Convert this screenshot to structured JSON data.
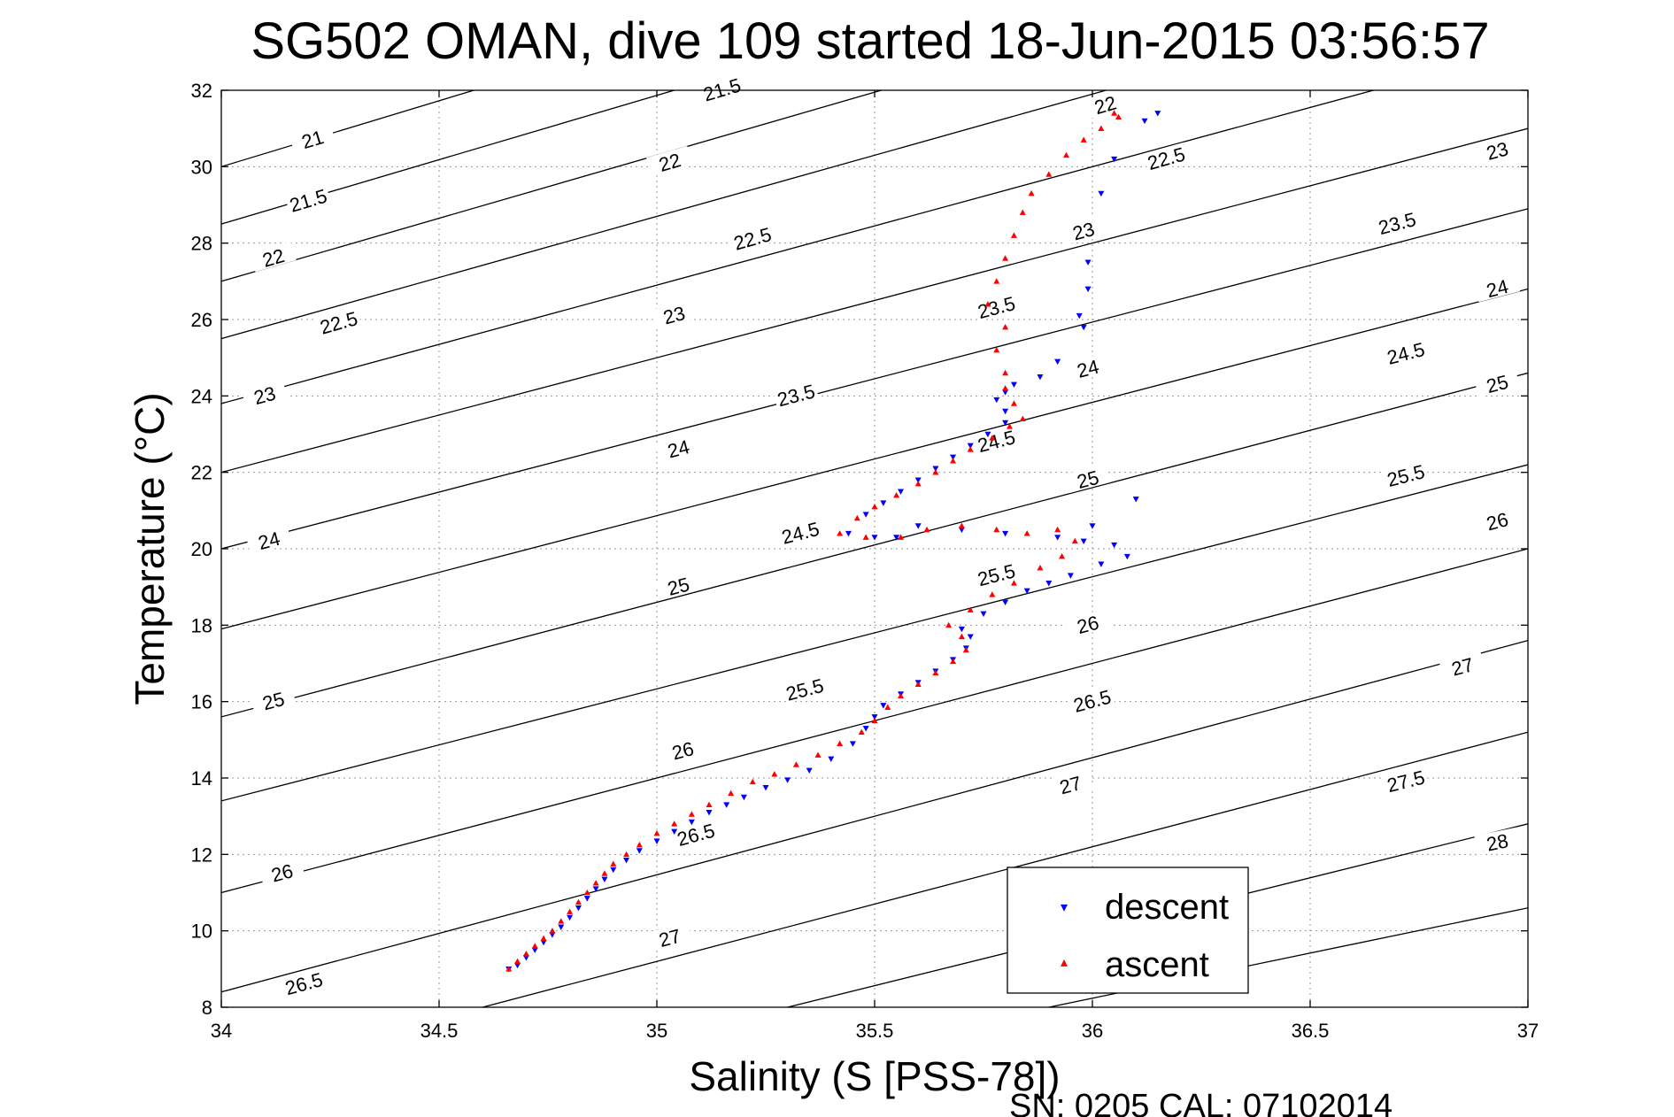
{
  "chart_data": {
    "type": "scatter",
    "title": "SG502 OMAN, dive 109 started 18-Jun-2015 03:56:57",
    "xlabel": "Salinity (S [PSS-78])",
    "ylabel": "Temperature (°C)",
    "xlim": [
      34,
      37
    ],
    "ylim": [
      8,
      32
    ],
    "x_ticks": [
      34,
      34.5,
      35,
      35.5,
      36,
      36.5,
      37
    ],
    "x_tick_labels": [
      "34",
      "34.5",
      "35",
      "35.5",
      "36",
      "36.5",
      "37"
    ],
    "y_ticks": [
      8,
      10,
      12,
      14,
      16,
      18,
      20,
      22,
      24,
      26,
      28,
      30,
      32
    ],
    "y_tick_labels": [
      "8",
      "10",
      "12",
      "14",
      "16",
      "18",
      "20",
      "22",
      "24",
      "26",
      "28",
      "30",
      "32"
    ],
    "grid": true,
    "legend_position": "bottom-right",
    "footer": "SN: 0205  CAL: 07102014",
    "density_contours": [
      {
        "sigma": 21,
        "label": "21",
        "points": [
          [
            34.0,
            30.0
          ],
          [
            36.0,
            36.9
          ]
        ],
        "labels_at": [
          [
            34.21,
            30.7
          ]
        ]
      },
      {
        "sigma": 21.5,
        "label": "21.5",
        "points": [
          [
            34.0,
            28.5
          ],
          [
            37.0,
            38.6
          ]
        ],
        "labels_at": [
          [
            34.2,
            29.1
          ],
          [
            35.15,
            32.0
          ]
        ]
      },
      {
        "sigma": 22,
        "label": "22",
        "points": [
          [
            34.0,
            27.0
          ],
          [
            37.0,
            36.9
          ]
        ],
        "labels_at": [
          [
            34.12,
            27.6
          ],
          [
            35.03,
            30.1
          ],
          [
            36.03,
            31.6
          ]
        ]
      },
      {
        "sigma": 22.5,
        "label": "22.5",
        "points": [
          [
            34.0,
            25.5
          ],
          [
            37.0,
            35.1
          ]
        ],
        "labels_at": [
          [
            34.27,
            25.9
          ],
          [
            35.22,
            28.1
          ],
          [
            36.17,
            30.2
          ]
        ]
      },
      {
        "sigma": 23,
        "label": "23",
        "points": [
          [
            34.0,
            23.8
          ],
          [
            37.0,
            33.1
          ]
        ],
        "labels_at": [
          [
            34.1,
            24.0
          ],
          [
            35.04,
            26.1
          ],
          [
            35.98,
            28.3
          ],
          [
            36.93,
            30.4
          ]
        ]
      },
      {
        "sigma": 23.5,
        "label": "23.5",
        "points": [
          [
            34.0,
            22.0
          ],
          [
            37.0,
            31.0
          ]
        ],
        "labels_at": [
          [
            35.32,
            24.0
          ],
          [
            35.78,
            26.3
          ],
          [
            36.7,
            28.5
          ]
        ]
      },
      {
        "sigma": 24,
        "label": "24",
        "points": [
          [
            34.0,
            20.0
          ],
          [
            37.0,
            28.9
          ]
        ],
        "labels_at": [
          [
            34.11,
            20.2
          ],
          [
            35.05,
            22.6
          ],
          [
            35.99,
            24.7
          ],
          [
            36.93,
            26.8
          ]
        ]
      },
      {
        "sigma": 24.5,
        "label": "24.5",
        "points": [
          [
            34.0,
            17.9
          ],
          [
            37.0,
            26.8
          ]
        ],
        "labels_at": [
          [
            35.33,
            20.4
          ],
          [
            35.78,
            22.8
          ],
          [
            36.72,
            25.1
          ]
        ]
      },
      {
        "sigma": 25,
        "label": "25",
        "points": [
          [
            34.0,
            15.6
          ],
          [
            37.0,
            24.6
          ]
        ],
        "labels_at": [
          [
            34.12,
            16.0
          ],
          [
            35.05,
            19.0
          ],
          [
            35.99,
            21.8
          ],
          [
            36.93,
            24.3
          ]
        ]
      },
      {
        "sigma": 25.5,
        "label": "25.5",
        "points": [
          [
            34.0,
            13.4
          ],
          [
            37.0,
            22.2
          ]
        ],
        "labels_at": [
          [
            35.34,
            16.3
          ],
          [
            35.78,
            19.3
          ],
          [
            36.72,
            21.9
          ]
        ]
      },
      {
        "sigma": 26,
        "label": "26",
        "points": [
          [
            34.0,
            11.0
          ],
          [
            37.0,
            20.0
          ]
        ],
        "labels_at": [
          [
            34.14,
            11.5
          ],
          [
            35.06,
            14.7
          ],
          [
            35.99,
            18.0
          ],
          [
            36.93,
            20.7
          ]
        ]
      },
      {
        "sigma": 26.5,
        "label": "26.5",
        "points": [
          [
            34.0,
            8.4
          ],
          [
            37.0,
            17.6
          ]
        ],
        "labels_at": [
          [
            34.19,
            8.6
          ],
          [
            35.09,
            12.5
          ],
          [
            36.0,
            16.0
          ]
        ]
      },
      {
        "sigma": 27,
        "label": "27",
        "points": [
          [
            34.6,
            8.0
          ],
          [
            37.0,
            15.2
          ]
        ],
        "labels_at": [
          [
            35.03,
            9.8
          ],
          [
            35.95,
            13.8
          ],
          [
            36.85,
            16.9
          ]
        ]
      },
      {
        "sigma": 27.5,
        "label": "27.5",
        "points": [
          [
            35.3,
            8.0
          ],
          [
            37.0,
            12.8
          ]
        ],
        "labels_at": [
          [
            36.72,
            13.9
          ]
        ]
      },
      {
        "sigma": 28,
        "label": "28",
        "points": [
          [
            35.9,
            8.0
          ],
          [
            37.0,
            10.6
          ]
        ],
        "labels_at": [
          [
            36.93,
            12.3
          ]
        ]
      }
    ],
    "series": [
      {
        "name": "descent",
        "color": "#0000ff",
        "marker": "triangle-down",
        "points": [
          [
            34.66,
            9.0
          ],
          [
            34.68,
            9.1
          ],
          [
            34.7,
            9.3
          ],
          [
            34.72,
            9.5
          ],
          [
            34.74,
            9.7
          ],
          [
            34.76,
            9.9
          ],
          [
            34.78,
            10.1
          ],
          [
            34.8,
            10.35
          ],
          [
            34.82,
            10.6
          ],
          [
            34.84,
            10.85
          ],
          [
            34.86,
            11.1
          ],
          [
            34.88,
            11.35
          ],
          [
            34.9,
            11.6
          ],
          [
            34.93,
            11.85
          ],
          [
            34.96,
            12.1
          ],
          [
            35.0,
            12.35
          ],
          [
            35.04,
            12.6
          ],
          [
            35.08,
            12.85
          ],
          [
            35.12,
            13.1
          ],
          [
            35.16,
            13.3
          ],
          [
            35.2,
            13.5
          ],
          [
            35.25,
            13.75
          ],
          [
            35.3,
            13.95
          ],
          [
            35.35,
            14.2
          ],
          [
            35.4,
            14.5
          ],
          [
            35.45,
            14.9
          ],
          [
            35.48,
            15.3
          ],
          [
            35.5,
            15.6
          ],
          [
            35.52,
            15.9
          ],
          [
            35.56,
            16.2
          ],
          [
            35.6,
            16.5
          ],
          [
            35.64,
            16.8
          ],
          [
            35.68,
            17.1
          ],
          [
            35.71,
            17.4
          ],
          [
            35.72,
            17.7
          ],
          [
            35.7,
            17.9
          ],
          [
            35.75,
            18.3
          ],
          [
            35.8,
            18.6
          ],
          [
            35.85,
            18.9
          ],
          [
            35.9,
            19.1
          ],
          [
            35.95,
            19.3
          ],
          [
            36.02,
            19.6
          ],
          [
            36.08,
            19.8
          ],
          [
            36.05,
            20.1
          ],
          [
            35.98,
            20.2
          ],
          [
            36.0,
            20.6
          ],
          [
            36.1,
            21.3
          ],
          [
            35.92,
            20.3
          ],
          [
            35.8,
            20.4
          ],
          [
            35.7,
            20.5
          ],
          [
            35.6,
            20.6
          ],
          [
            35.55,
            20.3
          ],
          [
            35.5,
            20.3
          ],
          [
            35.44,
            20.4
          ],
          [
            35.48,
            20.9
          ],
          [
            35.52,
            21.2
          ],
          [
            35.56,
            21.5
          ],
          [
            35.6,
            21.8
          ],
          [
            35.64,
            22.1
          ],
          [
            35.68,
            22.4
          ],
          [
            35.72,
            22.7
          ],
          [
            35.76,
            23.0
          ],
          [
            35.8,
            23.3
          ],
          [
            35.8,
            23.6
          ],
          [
            35.78,
            23.9
          ],
          [
            35.8,
            24.1
          ],
          [
            35.82,
            24.3
          ],
          [
            35.88,
            24.5
          ],
          [
            35.92,
            24.9
          ],
          [
            35.98,
            25.8
          ],
          [
            35.97,
            26.1
          ],
          [
            35.99,
            26.8
          ],
          [
            35.99,
            27.5
          ],
          [
            36.02,
            29.3
          ],
          [
            36.05,
            30.2
          ],
          [
            36.12,
            31.2
          ],
          [
            36.15,
            31.4
          ]
        ]
      },
      {
        "name": "ascent",
        "color": "#ff0000",
        "marker": "triangle-up",
        "points": [
          [
            34.66,
            9.0
          ],
          [
            34.68,
            9.2
          ],
          [
            34.7,
            9.4
          ],
          [
            34.72,
            9.6
          ],
          [
            34.74,
            9.8
          ],
          [
            34.76,
            10.0
          ],
          [
            34.78,
            10.25
          ],
          [
            34.8,
            10.5
          ],
          [
            34.82,
            10.75
          ],
          [
            34.84,
            11.0
          ],
          [
            34.86,
            11.25
          ],
          [
            34.88,
            11.5
          ],
          [
            34.9,
            11.75
          ],
          [
            34.93,
            12.0
          ],
          [
            34.96,
            12.25
          ],
          [
            35.0,
            12.55
          ],
          [
            35.04,
            12.8
          ],
          [
            35.08,
            13.05
          ],
          [
            35.12,
            13.3
          ],
          [
            35.17,
            13.6
          ],
          [
            35.22,
            13.9
          ],
          [
            35.27,
            14.1
          ],
          [
            35.32,
            14.35
          ],
          [
            35.37,
            14.6
          ],
          [
            35.42,
            14.9
          ],
          [
            35.47,
            15.2
          ],
          [
            35.5,
            15.5
          ],
          [
            35.53,
            15.85
          ],
          [
            35.56,
            16.15
          ],
          [
            35.6,
            16.45
          ],
          [
            35.64,
            16.75
          ],
          [
            35.68,
            17.05
          ],
          [
            35.71,
            17.35
          ],
          [
            35.7,
            17.7
          ],
          [
            35.67,
            18.0
          ],
          [
            35.72,
            18.4
          ],
          [
            35.77,
            18.8
          ],
          [
            35.82,
            19.1
          ],
          [
            35.88,
            19.5
          ],
          [
            35.93,
            19.8
          ],
          [
            35.96,
            20.2
          ],
          [
            35.92,
            20.5
          ],
          [
            35.85,
            20.4
          ],
          [
            35.78,
            20.5
          ],
          [
            35.7,
            20.6
          ],
          [
            35.62,
            20.5
          ],
          [
            35.56,
            20.3
          ],
          [
            35.48,
            20.3
          ],
          [
            35.42,
            20.4
          ],
          [
            35.46,
            20.8
          ],
          [
            35.5,
            21.1
          ],
          [
            35.55,
            21.4
          ],
          [
            35.6,
            21.7
          ],
          [
            35.64,
            22.0
          ],
          [
            35.68,
            22.3
          ],
          [
            35.72,
            22.6
          ],
          [
            35.77,
            22.9
          ],
          [
            35.81,
            23.2
          ],
          [
            35.84,
            23.4
          ],
          [
            35.82,
            23.8
          ],
          [
            35.8,
            24.2
          ],
          [
            35.8,
            24.6
          ],
          [
            35.78,
            25.2
          ],
          [
            35.8,
            25.8
          ],
          [
            35.76,
            26.4
          ],
          [
            35.78,
            27.0
          ],
          [
            35.8,
            27.6
          ],
          [
            35.82,
            28.2
          ],
          [
            35.84,
            28.8
          ],
          [
            35.86,
            29.3
          ],
          [
            35.9,
            29.8
          ],
          [
            35.94,
            30.3
          ],
          [
            35.98,
            30.7
          ],
          [
            36.02,
            31.0
          ],
          [
            36.06,
            31.3
          ],
          [
            36.05,
            31.4
          ]
        ]
      }
    ]
  },
  "legend": {
    "descent_label": "descent",
    "ascent_label": "ascent"
  }
}
